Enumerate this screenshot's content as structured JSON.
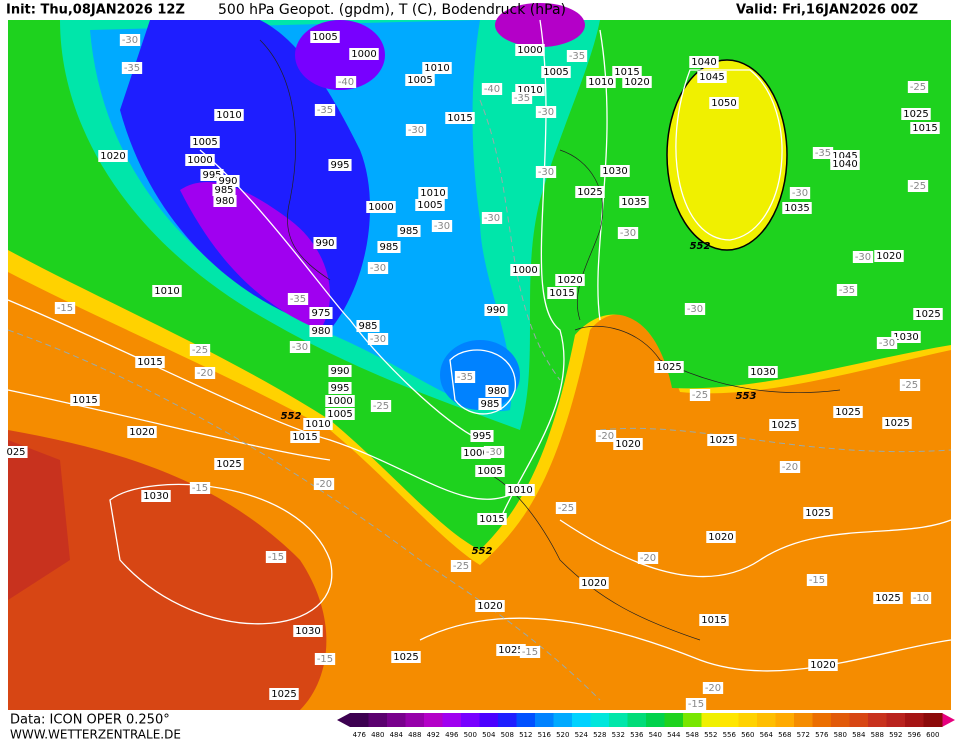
{
  "header": {
    "init": "Init: Thu,08JAN2026 12Z",
    "title": "500 hPa Geopot. (gpdm), T (C), Bodendruck (hPa)",
    "valid": "Valid: Fri,16JAN2026 00Z"
  },
  "footer": {
    "data": "Data: ICON OPER 0.250°",
    "site": "WWW.WETTERZENTRALE.DE"
  },
  "map": {
    "pressure_labels": [
      "1005",
      "1000",
      "1010",
      "1005",
      "1000",
      "1005",
      "1015",
      "1010",
      "1020",
      "1040",
      "1045",
      "1050",
      "1010",
      "1015",
      "1010",
      "1005",
      "1020",
      "1000",
      "995",
      "990",
      "985",
      "980",
      "995",
      "1010",
      "1005",
      "1000",
      "985",
      "985",
      "990",
      "1000",
      "1020",
      "1015",
      "1025",
      "1030",
      "1035",
      "1035",
      "1045",
      "1040",
      "1025",
      "1015",
      "1020",
      "1025",
      "1030",
      "1010",
      "1015",
      "975",
      "980",
      "985",
      "990",
      "980",
      "985",
      "990",
      "995",
      "1000",
      "1005",
      "1010",
      "1015",
      "1015",
      "1020",
      "1025",
      "1030",
      "995",
      "1000",
      "1005",
      "1010",
      "1015",
      "1025",
      "1030",
      "1025",
      "1020",
      "1025",
      "1025",
      "1025",
      "1025",
      "1020",
      "1020",
      "1020",
      "1015",
      "1025",
      "1025",
      "1030",
      "1025",
      "1020",
      "1025",
      "025"
    ],
    "temperature_labels": [
      "-30",
      "-35",
      "-40",
      "-35",
      "-30",
      "-40",
      "-35",
      "-30",
      "-30",
      "-30",
      "-30",
      "-30",
      "-35",
      "-30",
      "-30",
      "-25",
      "-20",
      "-15",
      "-35",
      "-25",
      "-30",
      "-20",
      "-15",
      "-15",
      "-15",
      "-20",
      "-25",
      "-30",
      "-30",
      "-30",
      "-35",
      "-30",
      "-35",
      "-30",
      "-25",
      "-25",
      "-25",
      "-20",
      "-25",
      "-25",
      "-20",
      "-15",
      "-15",
      "-10",
      "-15",
      "-20",
      "-35"
    ],
    "height_labels": [
      "552",
      "552",
      "552",
      "553"
    ]
  },
  "legend": {
    "values": [
      476,
      480,
      484,
      488,
      492,
      496,
      500,
      504,
      508,
      512,
      516,
      520,
      524,
      528,
      532,
      536,
      540,
      544,
      548,
      552,
      556,
      560,
      564,
      568,
      572,
      576,
      580,
      584,
      588,
      592,
      596,
      600
    ],
    "colors": [
      "#3c0050",
      "#5a006e",
      "#78008c",
      "#9600aa",
      "#b400c8",
      "#a000f0",
      "#7800ff",
      "#4b00ff",
      "#1e1eff",
      "#0050ff",
      "#0082ff",
      "#00aaff",
      "#00d2ff",
      "#00e6dc",
      "#00e6aa",
      "#00dc78",
      "#00d24b",
      "#1ed21e",
      "#78e600",
      "#f0f000",
      "#ffe600",
      "#ffd200",
      "#ffbe00",
      "#ffaa00",
      "#f58c00",
      "#eb6e00",
      "#e15a0a",
      "#d74614",
      "#c8321e",
      "#b9231e",
      "#a51414",
      "#8c0a0a"
    ]
  }
}
